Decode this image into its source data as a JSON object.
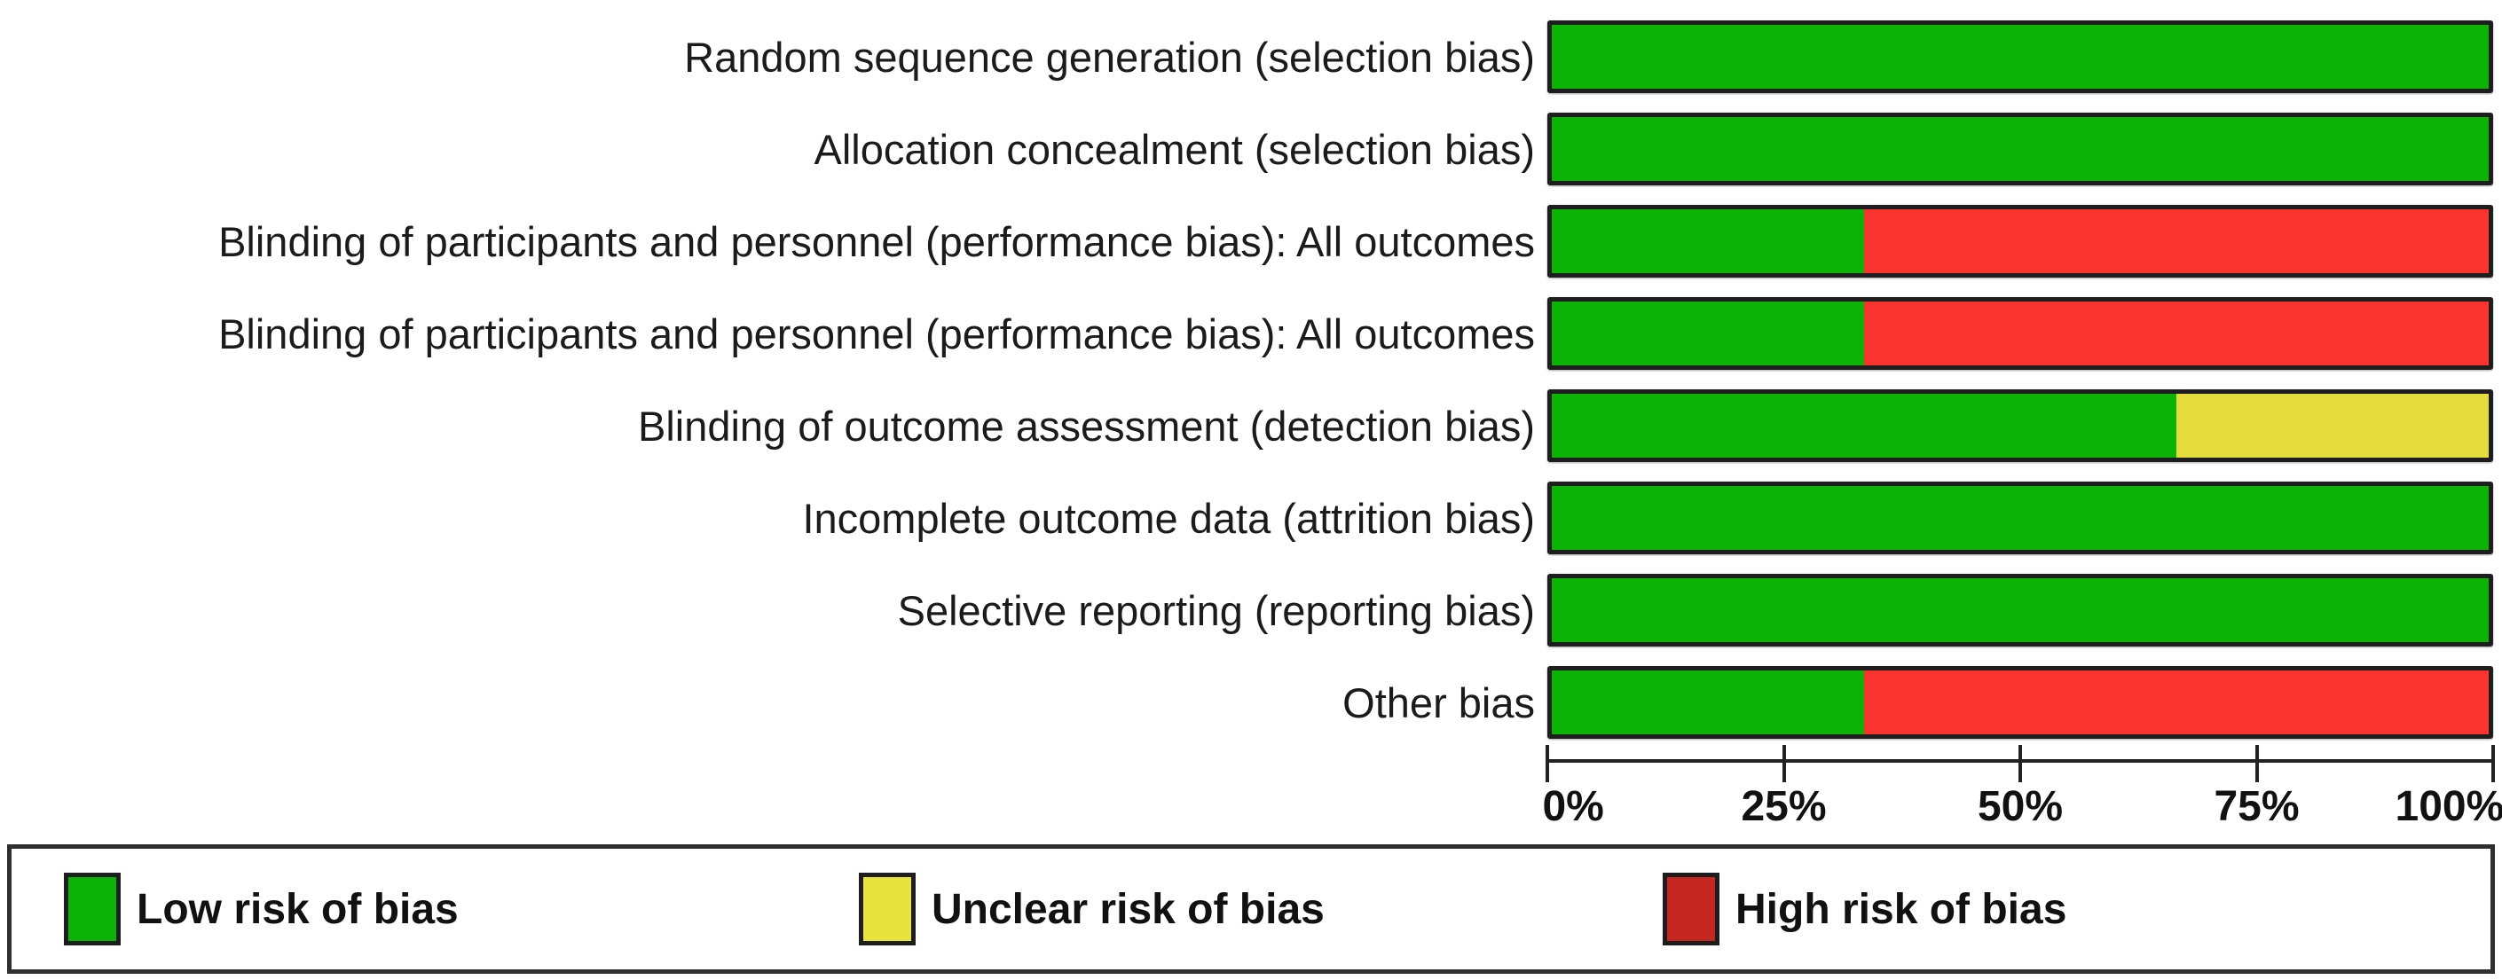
{
  "chart_data": {
    "type": "bar",
    "orientation": "horizontal-stacked",
    "title": "",
    "xlabel": "",
    "ylabel": "",
    "categories": [
      "Random sequence generation (selection bias)",
      "Allocation concealment (selection bias)",
      "Blinding of participants and personnel (performance bias): All outcomes",
      "Blinding of participants and personnel (performance bias): All outcomes",
      "Blinding of outcome assessment (detection bias)",
      "Incomplete outcome data (attrition bias)",
      "Selective reporting (reporting bias)",
      "Other bias"
    ],
    "series": [
      {
        "name": "Low risk of bias",
        "key": "low-risk",
        "color": "#0ab306",
        "values": [
          100,
          100,
          33.3,
          33.3,
          66.7,
          100,
          100,
          33.3
        ]
      },
      {
        "name": "Unclear risk of bias",
        "key": "unclear-risk",
        "color": "#e5dd3c",
        "values": [
          0,
          0,
          0,
          0,
          33.3,
          0,
          0,
          0
        ]
      },
      {
        "name": "High risk of bias",
        "key": "high-risk",
        "color": "#fb3430",
        "values": [
          0,
          0,
          66.7,
          66.7,
          0,
          0,
          0,
          66.7
        ]
      }
    ],
    "x_axis": {
      "min": 0,
      "max": 100,
      "tick_labels": [
        "0%",
        "25%",
        "50%",
        "75%",
        "100%"
      ]
    },
    "legend": {
      "position": "bottom",
      "items": [
        {
          "label": "Low risk of bias",
          "key": "low-risk",
          "color": "#0ab306"
        },
        {
          "label": "Unclear risk of bias",
          "key": "unclear-risk",
          "color": "#e8e23c"
        },
        {
          "label": "High risk of bias",
          "key": "high-risk",
          "color": "#c5261f"
        }
      ]
    },
    "grid": false
  }
}
